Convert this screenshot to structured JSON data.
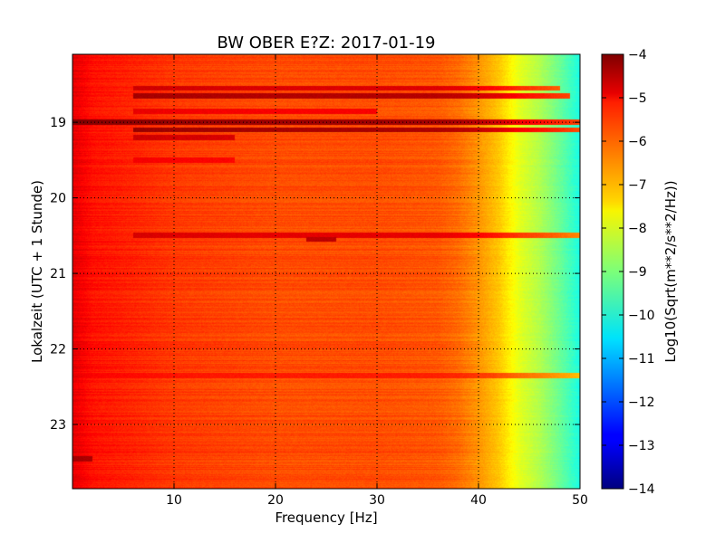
{
  "chart_data": {
    "type": "heatmap",
    "title": "BW OBER E?Z: 2017-01-19",
    "xlabel": "Frequency [Hz]",
    "ylabel": "Lokalzeit (UTC + 1 Stunde)",
    "xlim": [
      0,
      50
    ],
    "ylim": [
      23.85,
      18.1
    ],
    "x_ticks": [
      10,
      20,
      30,
      40,
      50
    ],
    "y_ticks": [
      19,
      20,
      21,
      22,
      23
    ],
    "grid": true,
    "grid_style": "dotted",
    "colormap": "jet",
    "colorbar": {
      "label": "Log10(Sqrt(m**2/s**2/Hz))",
      "range": [
        -14,
        -4
      ],
      "ticks": [
        -4,
        -5,
        -6,
        -7,
        -8,
        -9,
        -10,
        -11,
        -12,
        -13,
        -14
      ]
    },
    "profile_by_frequency": {
      "frequency": [
        0,
        2,
        10,
        20,
        30,
        36,
        38,
        40,
        42,
        43,
        44,
        46,
        48,
        49.5,
        50
      ],
      "value": [
        -5.0,
        -5.4,
        -5.8,
        -6.0,
        -6.0,
        -6.1,
        -6.3,
        -6.7,
        -7.2,
        -7.6,
        -8.0,
        -8.5,
        -9.2,
        -9.8,
        -10.0
      ]
    },
    "bands": [
      {
        "time": 18.55,
        "freq_range": [
          6,
          48
        ],
        "value": -4.9
      },
      {
        "time": 18.65,
        "freq_range": [
          6,
          49
        ],
        "value": -4.5
      },
      {
        "time": 18.85,
        "freq_range": [
          6,
          30
        ],
        "value": -5.2
      },
      {
        "time": 19.0,
        "freq_range": [
          0,
          50
        ],
        "value": -4.3
      },
      {
        "time": 19.1,
        "freq_range": [
          6,
          50
        ],
        "value": -4.4
      },
      {
        "time": 19.2,
        "freq_range": [
          6,
          16
        ],
        "value": -4.9
      },
      {
        "time": 19.5,
        "freq_range": [
          6,
          16
        ],
        "value": -5.3
      },
      {
        "time": 20.5,
        "freq_range": [
          6,
          50
        ],
        "value": -5.0
      },
      {
        "time": 20.55,
        "freq_range": [
          23,
          26
        ],
        "value": -4.6
      },
      {
        "time": 22.35,
        "freq_range": [
          0,
          50
        ],
        "value": -5.5
      },
      {
        "time": 23.45,
        "freq_range": [
          0,
          2
        ],
        "value": -4.7
      }
    ]
  }
}
